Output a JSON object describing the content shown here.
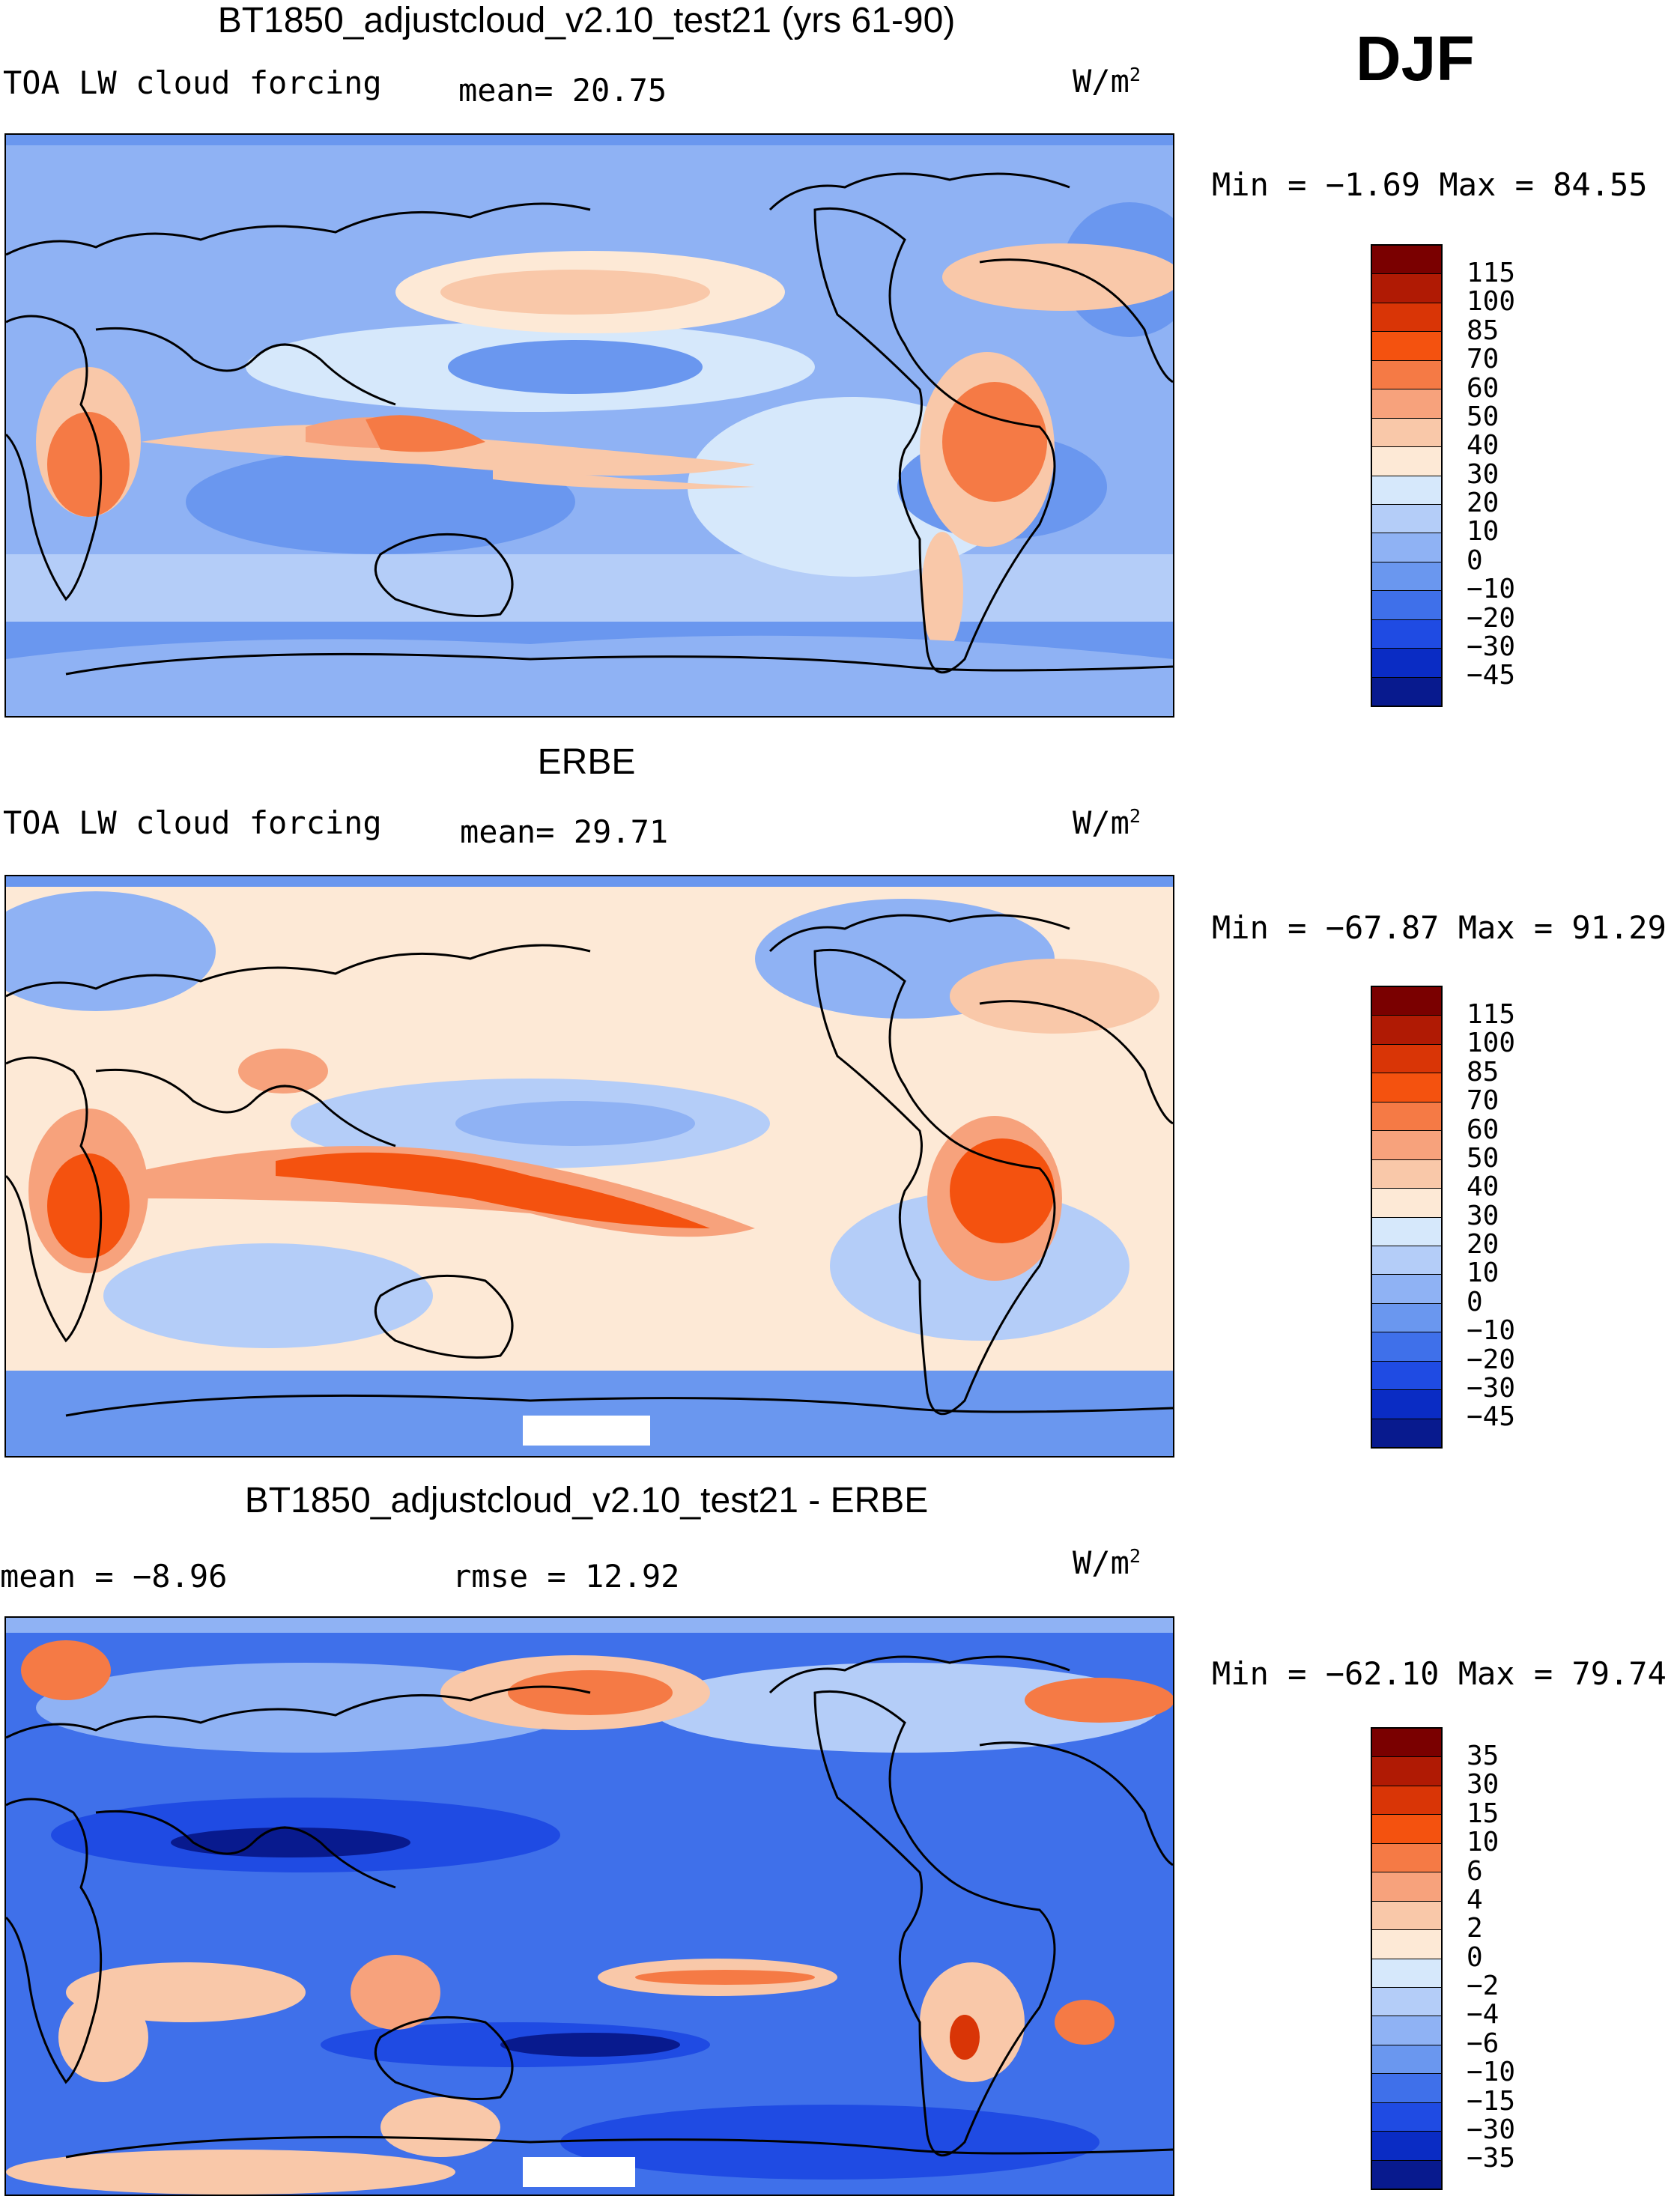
{
  "season": "DJF",
  "panels": [
    {
      "id": "model",
      "title": "BT1850_adjustcloud_v2.10_test21 (yrs 61-90)",
      "left_label": "TOA LW cloud forcing",
      "mid_label": "mean=  20.75",
      "units": "W/m",
      "units_sup": "2",
      "minmax": "Min =  −1.69 Max =  84.55",
      "colorbar": {
        "colors": [
          "#7a0000",
          "#b01a04",
          "#d93506",
          "#f4520f",
          "#f57a45",
          "#f7a27c",
          "#f9c8a9",
          "#fde9d6",
          "#d6e8fb",
          "#b4cdf8",
          "#8fb2f4",
          "#6a97ef",
          "#3f70ea",
          "#1f4be3",
          "#0a2cc4",
          "#081a8e"
        ],
        "ticks": [
          "115",
          "100",
          "85",
          "70",
          "60",
          "50",
          "40",
          "30",
          "20",
          "10",
          "0",
          "−10",
          "−20",
          "−30",
          "−45"
        ]
      }
    },
    {
      "id": "obs",
      "title": "ERBE",
      "left_label": "TOA LW cloud forcing",
      "mid_label": "mean=  29.71",
      "units": "W/m",
      "units_sup": "2",
      "minmax": "Min = −67.87 Max =  91.29",
      "colorbar": {
        "colors": [
          "#7a0000",
          "#b01a04",
          "#d93506",
          "#f4520f",
          "#f57a45",
          "#f7a27c",
          "#f9c8a9",
          "#fde9d6",
          "#d6e8fb",
          "#b4cdf8",
          "#8fb2f4",
          "#6a97ef",
          "#3f70ea",
          "#1f4be3",
          "#0a2cc4",
          "#081a8e"
        ],
        "ticks": [
          "115",
          "100",
          "85",
          "70",
          "60",
          "50",
          "40",
          "30",
          "20",
          "10",
          "0",
          "−10",
          "−20",
          "−30",
          "−45"
        ]
      }
    },
    {
      "id": "diff",
      "title": "BT1850_adjustcloud_v2.10_test21 - ERBE",
      "left_label": "mean =   −8.96",
      "mid_label": "rmse =   12.92",
      "units": "W/m",
      "units_sup": "2",
      "minmax": "Min = −62.10 Max =  79.74",
      "colorbar": {
        "colors": [
          "#7a0000",
          "#b01a04",
          "#d93506",
          "#f4520f",
          "#f57a45",
          "#f7a27c",
          "#f9c8a9",
          "#fde9d6",
          "#d6e8fb",
          "#b4cdf8",
          "#8fb2f4",
          "#6a97ef",
          "#3f70ea",
          "#1f4be3",
          "#0a2cc4",
          "#081a8e"
        ],
        "ticks": [
          "35",
          "30",
          "15",
          "10",
          "6",
          "4",
          "2",
          "0",
          "−2",
          "−4",
          "−6",
          "−10",
          "−15",
          "−30",
          "−35"
        ]
      }
    }
  ]
}
